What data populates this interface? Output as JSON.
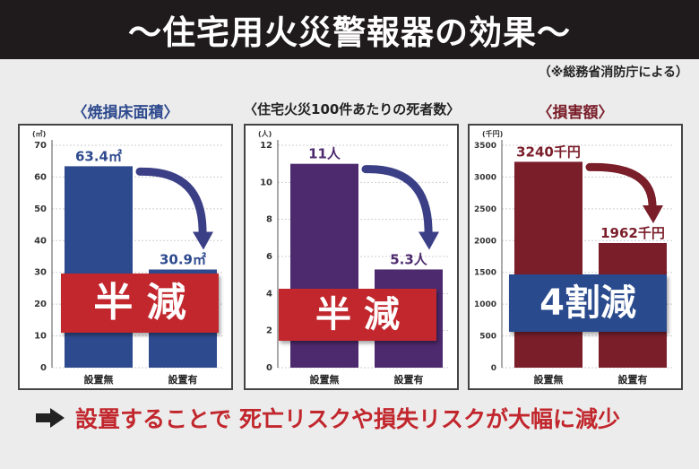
{
  "header": {
    "title": "～住宅用火災警報器の効果～"
  },
  "source_note": "（※総務省消防庁による）",
  "footer": {
    "text": "設置することで 死亡リスクや損失リスクが大幅に減少"
  },
  "chart_data": [
    {
      "type": "bar",
      "title": "〈焼損床面積〉",
      "unit": "(㎡)",
      "categories": [
        "設置無",
        "設置有"
      ],
      "values": [
        63.4,
        30.9
      ],
      "value_labels": [
        "63.4㎡",
        "30.9㎡"
      ],
      "ylim": [
        0,
        70
      ],
      "yticks": [
        0,
        10,
        20,
        30,
        40,
        50,
        60,
        70
      ],
      "color": "#2e4a8e",
      "label_color": "#2e4a8e",
      "arrow_color": "#3b3f86",
      "stamp": {
        "text": "半 減",
        "color": "#c1272d"
      }
    },
    {
      "type": "bar",
      "title": "〈住宅火災100件あたりの死者数〉",
      "unit": "(人)",
      "categories": [
        "設置無",
        "設置有"
      ],
      "values": [
        11,
        5.3
      ],
      "value_labels": [
        "11人",
        "5.3人"
      ],
      "ylim": [
        0,
        12
      ],
      "yticks": [
        0,
        2,
        4,
        6,
        8,
        10,
        12
      ],
      "color": "#4d2a6e",
      "label_color": "#4d2a6e",
      "arrow_color": "#3b3f86",
      "stamp": {
        "text": "半 減",
        "color": "#c1272d"
      }
    },
    {
      "type": "bar",
      "title": "〈損害額〉",
      "unit": "(千円)",
      "categories": [
        "設置無",
        "設置有"
      ],
      "values": [
        3240,
        1962
      ],
      "value_labels": [
        "3240千円",
        "1962千円"
      ],
      "ylim": [
        0,
        3500
      ],
      "yticks": [
        0,
        500,
        1000,
        1500,
        2000,
        2500,
        3000,
        3500
      ],
      "color": "#7a1e2a",
      "label_color": "#7a1e2a",
      "arrow_color": "#7a1e2a",
      "stamp": {
        "text": "4割減",
        "color": "#2a4a8e"
      }
    }
  ]
}
